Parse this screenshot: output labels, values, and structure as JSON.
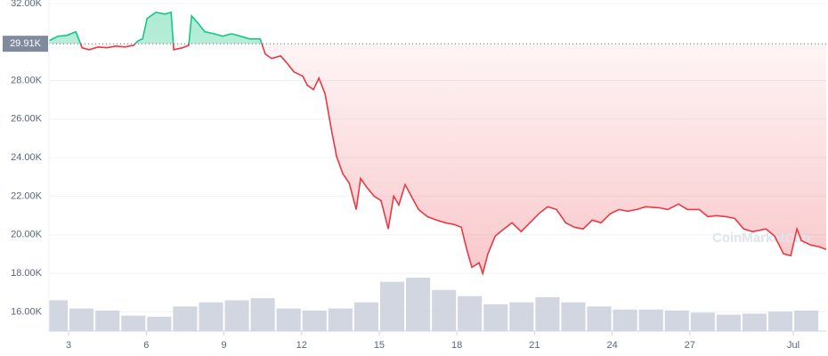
{
  "chart_data": {
    "type": "line",
    "watermark": "CoinMarketCap",
    "x": [
      2.24,
      2.59,
      2.93,
      3.28,
      3.52,
      3.79,
      4.14,
      4.48,
      4.82,
      5.17,
      5.51,
      5.68,
      5.86,
      6.03,
      6.37,
      6.72,
      6.96,
      7.06,
      7.4,
      7.64,
      7.75,
      7.99,
      8.26,
      8.61,
      8.95,
      9.3,
      9.64,
      9.98,
      10.4,
      10.6,
      10.84,
      11.19,
      11.43,
      11.71,
      12.05,
      12.22,
      12.46,
      12.67,
      12.91,
      13.15,
      13.35,
      13.6,
      13.84,
      14.11,
      14.28,
      14.52,
      14.8,
      15.07,
      15.35,
      15.56,
      15.76,
      16.0,
      16.24,
      16.52,
      16.86,
      17.21,
      17.55,
      17.9,
      18.17,
      18.38,
      18.58,
      18.86,
      19.0,
      19.2,
      19.48,
      19.82,
      20.13,
      20.48,
      20.82,
      21.16,
      21.51,
      21.85,
      22.2,
      22.54,
      22.88,
      23.23,
      23.57,
      23.92,
      24.26,
      24.6,
      24.95,
      25.29,
      25.81,
      26.15,
      26.56,
      26.91,
      27.36,
      27.7,
      28.04,
      28.39,
      28.73,
      29.08,
      29.42,
      29.94,
      30.28,
      30.62,
      30.9,
      31.14,
      31.31,
      31.66,
      32.0,
      32.27
    ],
    "values": [
      30060,
      30300,
      30340,
      30530,
      29700,
      29600,
      29740,
      29700,
      29790,
      29740,
      29830,
      30060,
      30160,
      31220,
      31540,
      31450,
      31540,
      29600,
      29700,
      29830,
      31360,
      30990,
      30530,
      30430,
      30300,
      30430,
      30300,
      30160,
      30160,
      29370,
      29140,
      29280,
      28910,
      28450,
      28220,
      27760,
      27530,
      28130,
      27300,
      25460,
      24070,
      23150,
      22690,
      21310,
      22920,
      22460,
      22000,
      21770,
      20300,
      22000,
      21540,
      22600,
      22000,
      21310,
      20940,
      20760,
      20620,
      20530,
      20390,
      19240,
      18310,
      18540,
      17990,
      19010,
      19930,
      20300,
      20620,
      20160,
      20620,
      21080,
      21450,
      21310,
      20620,
      20390,
      20300,
      20760,
      20620,
      21080,
      21310,
      21220,
      21310,
      21450,
      21400,
      21310,
      21590,
      21310,
      21310,
      20940,
      20990,
      20940,
      20850,
      20300,
      20160,
      20300,
      19930,
      19010,
      18910,
      20300,
      19700,
      19470,
      19370,
      19240
    ],
    "baseline": {
      "value": 29910,
      "label": "29.91K"
    },
    "up_color": "#16c784",
    "down_color": "#ea3943",
    "xlim": [
      2.24,
      32.27
    ],
    "ylim": [
      15000,
      32180
    ],
    "xticks": [
      {
        "value": 3,
        "label": "3"
      },
      {
        "value": 6,
        "label": "6"
      },
      {
        "value": 9,
        "label": "9"
      },
      {
        "value": 12,
        "label": "12"
      },
      {
        "value": 15,
        "label": "15"
      },
      {
        "value": 18,
        "label": "18"
      },
      {
        "value": 21,
        "label": "21"
      },
      {
        "value": 24,
        "label": "24"
      },
      {
        "value": 27,
        "label": "27"
      },
      {
        "value": 31,
        "label": "Jul"
      }
    ],
    "yticks": [
      {
        "value": 32000,
        "label": "32.00K"
      },
      {
        "value": 28000,
        "label": "28.00K"
      },
      {
        "value": 26000,
        "label": "26.00K"
      },
      {
        "value": 24000,
        "label": "24.00K"
      },
      {
        "value": 22000,
        "label": "22.00K"
      },
      {
        "value": 20000,
        "label": "20.00K"
      },
      {
        "value": 18000,
        "label": "18.00K"
      },
      {
        "value": 16000,
        "label": "16.00K"
      }
    ],
    "grid": true,
    "volume": {
      "color": "#c7ccd8",
      "x": [
        2.5,
        3.5,
        4.5,
        5.5,
        6.5,
        7.5,
        8.5,
        9.5,
        10.5,
        11.5,
        12.5,
        13.5,
        14.5,
        15.5,
        16.5,
        17.5,
        18.5,
        19.5,
        20.5,
        21.5,
        22.5,
        23.5,
        24.5,
        25.5,
        26.5,
        27.5,
        28.5,
        29.5,
        30.5,
        31.5
      ],
      "values": [
        30,
        22,
        20,
        15,
        14,
        24,
        28,
        30,
        32,
        22,
        20,
        22,
        28,
        48,
        52,
        40,
        34,
        26,
        28,
        33,
        28,
        24,
        21,
        21,
        20,
        18,
        16,
        17,
        19,
        20
      ]
    }
  }
}
